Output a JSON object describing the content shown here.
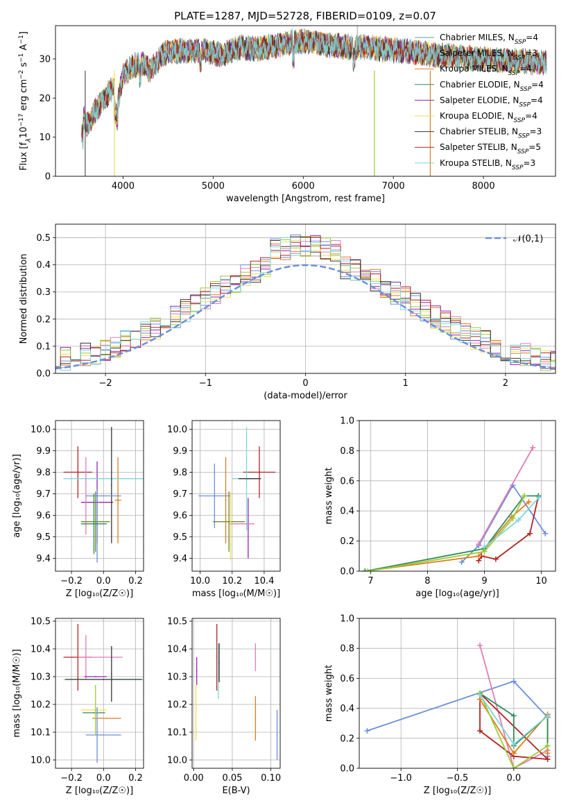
{
  "figure": {
    "title": "PLATE=1287, MJD=52728, FIBERID=0109, z=0.07"
  },
  "colors": {
    "Chabrier MILES": "#5f9ea0",
    "Salpeter MILES": "#9e9e9e",
    "Kroupa MILES": "#e07b1f",
    "Chabrier ELODIE": "#2e8b57",
    "Salpeter ELODIE": "#8e24aa",
    "Kroupa ELODIE": "#f0e050",
    "Chabrier STELIB": "#333333",
    "Salpeter STELIB": "#b22222",
    "Kroupa STELIB": "#7fd6d8",
    "blue": "#6b8fd8",
    "pink": "#e07cb8",
    "yellowgreen": "#9acd32",
    "olive": "#6b8e23"
  },
  "chart_data": [
    {
      "id": "spectrum",
      "type": "line",
      "xlabel": "wavelength [Angstrom, rest frame]",
      "ylabel_parts": [
        "Flux [f",
        "λ",
        "10",
        "−17",
        " erg cm",
        "−2",
        " s",
        "−1",
        " A",
        "−1",
        "]"
      ],
      "xlim": [
        3250,
        8800
      ],
      "ylim": [
        0,
        38.5
      ],
      "xticks": [
        4000,
        5000,
        6000,
        7000,
        8000
      ],
      "yticks": [
        0,
        10,
        20,
        30
      ],
      "grid": false,
      "legend_position": "top-right",
      "series": [
        {
          "name": "Chabrier MILES",
          "nssp": 4,
          "color": "#5f9ea0"
        },
        {
          "name": "Salpeter MILES",
          "nssp": 3,
          "color": "#9e9e9e"
        },
        {
          "name": "Kroupa MILES",
          "nssp": 4,
          "color": "#e07b1f"
        },
        {
          "name": "Chabrier ELODIE",
          "nssp": 4,
          "color": "#2e8b57"
        },
        {
          "name": "Salpeter ELODIE",
          "nssp": 4,
          "color": "#8e24aa"
        },
        {
          "name": "Kroupa ELODIE",
          "nssp": 4,
          "color": "#f0e050"
        },
        {
          "name": "Chabrier STELIB",
          "nssp": 3,
          "color": "#333333"
        },
        {
          "name": "Salpeter STELIB",
          "nssp": 5,
          "color": "#b22222"
        },
        {
          "name": "Kroupa STELIB",
          "nssp": 3,
          "color": "#7fd6d8"
        }
      ],
      "continuum": {
        "x": [
          3540,
          3600,
          3700,
          3800,
          3900,
          3950,
          4000,
          4100,
          4200,
          4300,
          4400,
          4500,
          4700,
          4900,
          5100,
          5300,
          5500,
          5700,
          5900,
          6100,
          6300,
          6500,
          6700,
          6900,
          7100,
          7300,
          7500,
          7700,
          8000,
          8300,
          8700
        ],
        "y": [
          16,
          13,
          17,
          20,
          23,
          20,
          26,
          28,
          29,
          27,
          30,
          32,
          32,
          32,
          31,
          33,
          32.5,
          33.5,
          34.5,
          34.5,
          33.5,
          33,
          33,
          32.5,
          32,
          31.5,
          31,
          30.5,
          30,
          29.5,
          29
        ]
      }
    },
    {
      "id": "residuals",
      "type": "histogram",
      "xlabel": "(data-model)/error",
      "ylabel": "Normed distribution",
      "xlim": [
        -2.5,
        2.5
      ],
      "ylim": [
        0,
        0.55
      ],
      "xticks": [
        -2,
        -1,
        0,
        1,
        2
      ],
      "xtick_labels": [
        "−2",
        "−1",
        "0",
        "1",
        "2"
      ],
      "yticks": [
        0,
        0.1,
        0.2,
        0.3,
        0.4,
        0.5
      ],
      "ytick_labels": [
        "0.0",
        "0.1",
        "0.2",
        "0.3",
        "0.4",
        "0.5"
      ],
      "grid": true,
      "bin_width": 0.1,
      "reference": {
        "name": "𝒩(0,1)",
        "style": "dashed",
        "color": "#6b8fd8"
      },
      "legend_position": "top-right",
      "series_colors": [
        "#e07b1f",
        "#8e24aa",
        "#f0e050",
        "#6b8fd8",
        "#e07cb8",
        "#9acd32",
        "#b22222",
        "#333333",
        "#7fd6d8"
      ]
    },
    {
      "id": "age-vs-z",
      "type": "scatter",
      "xlabel": "Z [log₁₀(Z/Z☉)]",
      "ylabel": "age  [log₁₀(age/yr)]",
      "xlim": [
        -0.3,
        0.25
      ],
      "ylim": [
        9.34,
        10.04
      ],
      "xticks": [
        -0.2,
        0.0,
        0.2
      ],
      "xtick_labels": [
        "−0.2",
        "0.0",
        "0.2"
      ],
      "yticks": [
        9.4,
        9.5,
        9.6,
        9.7,
        9.8,
        9.9,
        10.0
      ],
      "ytick_labels": [
        "9.4",
        "9.5",
        "9.6",
        "9.7",
        "9.8",
        "9.9",
        "10.0"
      ],
      "grid": true,
      "points": [
        {
          "x": -0.04,
          "y": 9.66,
          "xerr": 0.1,
          "yerr": 0.19,
          "color": "#8e24aa"
        },
        {
          "x": -0.16,
          "y": 9.8,
          "xerr": 0.09,
          "yerr": 0.12,
          "color": "#b22222"
        },
        {
          "x": 0.09,
          "y": 9.67,
          "xerr": 0.02,
          "yerr": 0.2,
          "color": "#e07b1f"
        },
        {
          "x": 0.0,
          "y": 9.77,
          "xerr": 0.25,
          "yerr": 0.0,
          "color": "#7fd6d8"
        },
        {
          "x": 0.05,
          "y": 9.74,
          "xerr": 0.0,
          "yerr": 0.27,
          "color": "#333333"
        },
        {
          "x": -0.11,
          "y": 9.69,
          "xerr": 0.0,
          "yerr": 0.18,
          "color": "#e07cb8"
        },
        {
          "x": -0.05,
          "y": 9.57,
          "xerr": 0.09,
          "yerr": 0.14,
          "color": "#6b8e23"
        },
        {
          "x": 0.0,
          "y": 9.69,
          "xerr": 0.11,
          "yerr": 0.0,
          "color": "#6b8fd8"
        },
        {
          "x": -0.04,
          "y": 9.55,
          "xerr": 0.0,
          "yerr": 0.17,
          "color": "#6b8fd8"
        },
        {
          "x": -0.06,
          "y": 9.56,
          "xerr": 0.08,
          "yerr": 0.14,
          "color": "#2e8b57"
        }
      ]
    },
    {
      "id": "age-vs-mass",
      "type": "scatter",
      "xlabel": "mass [log₁₀(M/M☉)]",
      "ylabel": "",
      "xlim": [
        9.95,
        10.5
      ],
      "ylim": [
        9.34,
        10.04
      ],
      "xticks": [
        10.0,
        10.2,
        10.4
      ],
      "xtick_labels": [
        "10.0",
        "10.2",
        "10.4"
      ],
      "yticks": [
        9.4,
        9.5,
        9.6,
        9.7,
        9.8,
        9.9,
        10.0
      ],
      "ytick_labels": [
        "9.4",
        "9.5",
        "9.6",
        "9.7",
        "9.8",
        "9.9",
        "10.0"
      ],
      "grid": true,
      "points": [
        {
          "x": 10.37,
          "y": 9.8,
          "xerr": 0.1,
          "yerr": 0.12,
          "color": "#b22222"
        },
        {
          "x": 10.29,
          "y": 9.77,
          "xerr": 0.09,
          "yerr": 0.24,
          "color": "#7fd6d8"
        },
        {
          "x": 10.31,
          "y": 9.77,
          "xerr": 0.07,
          "yerr": 0.0,
          "color": "#333333"
        },
        {
          "x": 10.09,
          "y": 9.69,
          "xerr": 0.1,
          "yerr": 0.15,
          "color": "#6b8fd8"
        },
        {
          "x": 10.16,
          "y": 9.67,
          "xerr": 0.0,
          "yerr": 0.2,
          "color": "#e07b1f"
        },
        {
          "x": 10.18,
          "y": 9.57,
          "xerr": 0.1,
          "yerr": 0.14,
          "color": "#6b8e23"
        },
        {
          "x": 10.3,
          "y": 9.54,
          "xerr": 0.0,
          "yerr": 0.14,
          "color": "#8e24aa"
        },
        {
          "x": 10.26,
          "y": 9.56,
          "xerr": 0.08,
          "yerr": 0.0,
          "color": "#e07cb8"
        },
        {
          "x": 10.19,
          "y": 9.55,
          "xerr": 0.0,
          "yerr": 0.16,
          "color": "#f0e050"
        }
      ]
    },
    {
      "id": "massweight-vs-age",
      "type": "line",
      "xlabel": "age  [log₁₀(age/yr)]",
      "ylabel": "mass weight",
      "xlim": [
        6.8,
        10.25
      ],
      "ylim": [
        0,
        1.0
      ],
      "xticks": [
        7,
        8,
        9,
        10
      ],
      "xtick_labels": [
        "7",
        "8",
        "9",
        "10"
      ],
      "yticks": [
        0,
        0.2,
        0.4,
        0.6,
        0.8,
        1.0
      ],
      "ytick_labels": [
        "0.0",
        "0.2",
        "0.4",
        "0.6",
        "0.8",
        "1.0"
      ],
      "grid": true,
      "series": [
        {
          "color": "#6b8fd8",
          "x": [
            8.6,
            8.9,
            9.5,
            10.07
          ],
          "y": [
            0.06,
            0.17,
            0.57,
            0.25
          ]
        },
        {
          "color": "#e07cb8",
          "x": [
            8.9,
            9.85
          ],
          "y": [
            0.18,
            0.82
          ]
        },
        {
          "color": "#b22222",
          "x": [
            8.9,
            8.95,
            9.2,
            9.8,
            9.95
          ],
          "y": [
            0.07,
            0.1,
            0.08,
            0.25,
            0.5
          ]
        },
        {
          "color": "#e07b1f",
          "x": [
            6.9,
            8.9,
            9.48,
            9.78
          ],
          "y": [
            0.0,
            0.1,
            0.36,
            0.46
          ]
        },
        {
          "color": "#2e8b57",
          "x": [
            6.9,
            9.0,
            9.7,
            9.95
          ],
          "y": [
            0.0,
            0.15,
            0.5,
            0.5
          ]
        },
        {
          "color": "#9acd32",
          "x": [
            6.95,
            9.0,
            9.5,
            9.7
          ],
          "y": [
            0.0,
            0.13,
            0.35,
            0.5
          ]
        },
        {
          "color": "#7fd6d8",
          "x": [
            9.0,
            9.6,
            9.96
          ],
          "y": [
            0.16,
            0.34,
            0.49
          ]
        }
      ]
    },
    {
      "id": "mass-vs-z",
      "type": "scatter",
      "xlabel": "Z [log₁₀(Z/Z☉)]",
      "ylabel": "mass [log₁₀(M/M☉)]",
      "xlim": [
        -0.3,
        0.25
      ],
      "ylim": [
        9.97,
        10.51
      ],
      "xticks": [
        -0.2,
        0.0,
        0.2
      ],
      "xtick_labels": [
        "−0.2",
        "0.0",
        "0.2"
      ],
      "yticks": [
        10.0,
        10.1,
        10.2,
        10.3,
        10.4,
        10.5
      ],
      "ytick_labels": [
        "10.0",
        "10.1",
        "10.2",
        "10.3",
        "10.4",
        "10.5"
      ],
      "grid": true,
      "points": [
        {
          "x": -0.16,
          "y": 10.37,
          "xerr": 0.09,
          "yerr": 0.12,
          "color": "#b22222"
        },
        {
          "x": -0.02,
          "y": 10.37,
          "xerr": 0.14,
          "yerr": 0.0,
          "color": "#e07cb8"
        },
        {
          "x": -0.11,
          "y": 10.37,
          "xerr": 0.0,
          "yerr": 0.08,
          "color": "#e07cb8"
        },
        {
          "x": -0.05,
          "y": 10.3,
          "xerr": 0.07,
          "yerr": 0.0,
          "color": "#8e24aa"
        },
        {
          "x": 0.05,
          "y": 10.31,
          "xerr": 0.0,
          "yerr": 0.1,
          "color": "#333333"
        },
        {
          "x": 0.0,
          "y": 10.29,
          "xerr": 0.25,
          "yerr": 0.0,
          "color": "#7fd6d8"
        },
        {
          "x": 0.0,
          "y": 10.29,
          "xerr": 0.24,
          "yerr": 0.0,
          "color": "#333333"
        },
        {
          "x": -0.06,
          "y": 10.18,
          "xerr": 0.08,
          "yerr": 0.0,
          "color": "#f0e050"
        },
        {
          "x": -0.06,
          "y": 10.17,
          "xerr": 0.07,
          "yerr": 0.0,
          "color": "#2e8b57"
        },
        {
          "x": 0.02,
          "y": 10.15,
          "xerr": 0.09,
          "yerr": 0.0,
          "color": "#e07b1f"
        },
        {
          "x": 0.0,
          "y": 10.09,
          "xerr": 0.11,
          "yerr": 0.0,
          "color": "#6b8fd8"
        },
        {
          "x": -0.04,
          "y": 10.09,
          "xerr": 0.0,
          "yerr": 0.1,
          "color": "#6b8fd8"
        },
        {
          "x": -0.05,
          "y": 10.18,
          "xerr": 0.0,
          "yerr": 0.09,
          "color": "#9acd32"
        }
      ]
    },
    {
      "id": "mass-vs-ebv",
      "type": "scatter",
      "xlabel": "E(B-V)",
      "ylabel": "",
      "xlim": [
        -0.002,
        0.112
      ],
      "ylim": [
        9.97,
        10.51
      ],
      "xticks": [
        0.0,
        0.05,
        0.1
      ],
      "xtick_labels": [
        "0.00",
        "0.05",
        "0.10"
      ],
      "yticks": [
        10.0,
        10.1,
        10.2,
        10.3,
        10.4,
        10.5
      ],
      "ytick_labels": [
        "10.0",
        "10.1",
        "10.2",
        "10.3",
        "10.4",
        "10.5"
      ],
      "grid": true,
      "points": [
        {
          "x": 0.003,
          "y": 10.17,
          "xerr": 0.0,
          "yerr": 0.1,
          "color": "#f0e050"
        },
        {
          "x": 0.004,
          "y": 10.32,
          "xerr": 0.0,
          "yerr": 0.05,
          "color": "#8e24aa"
        },
        {
          "x": 0.03,
          "y": 10.37,
          "xerr": 0.0,
          "yerr": 0.12,
          "color": "#b22222"
        },
        {
          "x": 0.032,
          "y": 10.32,
          "xerr": 0.0,
          "yerr": 0.1,
          "color": "#7fd6d8"
        },
        {
          "x": 0.033,
          "y": 10.35,
          "xerr": 0.0,
          "yerr": 0.07,
          "color": "#333333"
        },
        {
          "x": 0.08,
          "y": 10.37,
          "xerr": 0.0,
          "yerr": 0.05,
          "color": "#e07cb8"
        },
        {
          "x": 0.08,
          "y": 10.15,
          "xerr": 0.0,
          "yerr": 0.08,
          "color": "#e07b1f"
        },
        {
          "x": 0.108,
          "y": 10.09,
          "xerr": 0.0,
          "yerr": 0.09,
          "color": "#6b8fd8"
        }
      ]
    },
    {
      "id": "massweight-vs-z",
      "type": "line",
      "xlabel": "Z [log₁₀(Z/Z☉)]",
      "ylabel": "mass weight",
      "xlim": [
        -1.37,
        0.37
      ],
      "ylim": [
        0,
        1.0
      ],
      "xticks": [
        -1.0,
        -0.5,
        0.0
      ],
      "xtick_labels": [
        "−1.0",
        "−0.5",
        "0.0"
      ],
      "yticks": [
        0,
        0.2,
        0.4,
        0.6,
        0.8,
        1.0
      ],
      "ytick_labels": [
        "0.0",
        "0.2",
        "0.4",
        "0.6",
        "0.8",
        "1.0"
      ],
      "grid": true,
      "series": [
        {
          "color": "#6b8fd8",
          "x": [
            -1.3,
            0.0,
            0.3,
            0.3
          ],
          "y": [
            0.25,
            0.58,
            0.34,
            0.08
          ]
        },
        {
          "color": "#e07cb8",
          "x": [
            -0.3,
            0.0,
            0.3
          ],
          "y": [
            0.82,
            0.0,
            0.12
          ]
        },
        {
          "color": "#b22222",
          "x": [
            -0.3,
            -0.3,
            0.0,
            0.3,
            -0.3
          ],
          "y": [
            0.5,
            0.25,
            0.08,
            0.06,
            0.5
          ]
        },
        {
          "color": "#e07b1f",
          "x": [
            -0.3,
            0.0,
            0.3,
            0.3
          ],
          "y": [
            0.46,
            0.1,
            0.36,
            0.1
          ]
        },
        {
          "color": "#2e8b57",
          "x": [
            -0.3,
            0.0,
            0.0,
            0.3,
            0.3
          ],
          "y": [
            0.5,
            0.35,
            0.15,
            0.35,
            0.15
          ]
        },
        {
          "color": "#9acd32",
          "x": [
            -0.3,
            0.0,
            0.3
          ],
          "y": [
            0.5,
            0.0,
            0.15
          ]
        },
        {
          "color": "#7fd6d8",
          "x": [
            -0.3,
            0.0,
            0.3
          ],
          "y": [
            0.49,
            0.16,
            0.35
          ]
        }
      ]
    }
  ]
}
